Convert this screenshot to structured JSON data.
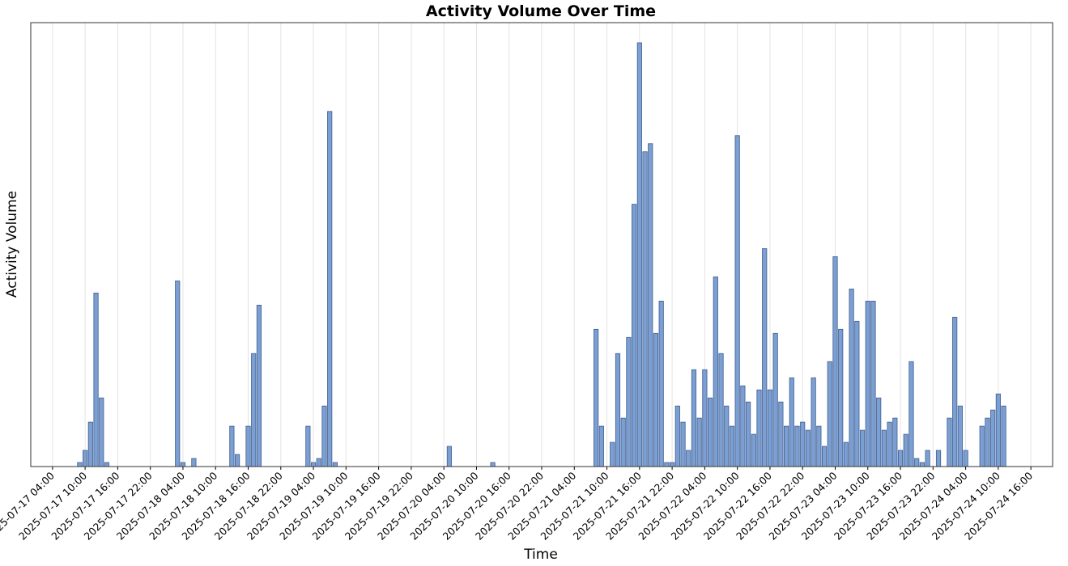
{
  "chart_data": {
    "type": "bar",
    "title": "Activity Volume Over Time",
    "xlabel": "Time",
    "ylabel": "Activity Volume",
    "x": [
      "2025-07-17 09:00",
      "2025-07-17 10:00",
      "2025-07-17 11:00",
      "2025-07-17 12:00",
      "2025-07-17 13:00",
      "2025-07-17 14:00",
      "2025-07-18 03:00",
      "2025-07-18 04:00",
      "2025-07-18 06:00",
      "2025-07-18 13:00",
      "2025-07-18 14:00",
      "2025-07-18 16:00",
      "2025-07-18 17:00",
      "2025-07-18 18:00",
      "2025-07-19 03:00",
      "2025-07-19 04:00",
      "2025-07-19 05:00",
      "2025-07-19 06:00",
      "2025-07-19 07:00",
      "2025-07-19 08:00",
      "2025-07-20 05:00",
      "2025-07-20 13:00",
      "2025-07-21 08:00",
      "2025-07-21 09:00",
      "2025-07-21 11:00",
      "2025-07-21 12:00",
      "2025-07-21 13:00",
      "2025-07-21 14:00",
      "2025-07-21 15:00",
      "2025-07-21 16:00",
      "2025-07-21 17:00",
      "2025-07-21 18:00",
      "2025-07-21 19:00",
      "2025-07-21 20:00",
      "2025-07-21 21:00",
      "2025-07-21 22:00",
      "2025-07-21 23:00",
      "2025-07-22 00:00",
      "2025-07-22 01:00",
      "2025-07-22 02:00",
      "2025-07-22 03:00",
      "2025-07-22 04:00",
      "2025-07-22 05:00",
      "2025-07-22 06:00",
      "2025-07-22 07:00",
      "2025-07-22 08:00",
      "2025-07-22 09:00",
      "2025-07-22 10:00",
      "2025-07-22 11:00",
      "2025-07-22 12:00",
      "2025-07-22 13:00",
      "2025-07-22 14:00",
      "2025-07-22 15:00",
      "2025-07-22 16:00",
      "2025-07-22 17:00",
      "2025-07-22 18:00",
      "2025-07-22 19:00",
      "2025-07-22 20:00",
      "2025-07-22 21:00",
      "2025-07-22 22:00",
      "2025-07-22 23:00",
      "2025-07-23 00:00",
      "2025-07-23 01:00",
      "2025-07-23 02:00",
      "2025-07-23 03:00",
      "2025-07-23 04:00",
      "2025-07-23 05:00",
      "2025-07-23 06:00",
      "2025-07-23 07:00",
      "2025-07-23 08:00",
      "2025-07-23 09:00",
      "2025-07-23 10:00",
      "2025-07-23 11:00",
      "2025-07-23 12:00",
      "2025-07-23 13:00",
      "2025-07-23 14:00",
      "2025-07-23 15:00",
      "2025-07-23 16:00",
      "2025-07-23 17:00",
      "2025-07-23 18:00",
      "2025-07-23 19:00",
      "2025-07-23 20:00",
      "2025-07-23 21:00",
      "2025-07-23 23:00",
      "2025-07-24 01:00",
      "2025-07-24 02:00",
      "2025-07-24 03:00",
      "2025-07-24 04:00",
      "2025-07-24 07:00",
      "2025-07-24 08:00",
      "2025-07-24 09:00",
      "2025-07-24 10:00",
      "2025-07-24 11:00"
    ],
    "values": [
      1,
      4,
      11,
      43,
      17,
      1,
      46,
      1,
      2,
      10,
      3,
      10,
      28,
      40,
      10,
      1,
      2,
      15,
      88,
      1,
      5,
      1,
      34,
      10,
      6,
      28,
      12,
      32,
      65,
      105,
      78,
      80,
      33,
      41,
      1,
      1,
      15,
      11,
      4,
      24,
      12,
      24,
      17,
      47,
      28,
      15,
      10,
      82,
      20,
      16,
      8,
      19,
      54,
      19,
      33,
      16,
      10,
      22,
      10,
      11,
      9,
      22,
      10,
      5,
      26,
      52,
      34,
      6,
      44,
      36,
      9,
      41,
      41,
      17,
      9,
      11,
      12,
      4,
      8,
      26,
      2,
      1,
      4,
      4,
      12,
      37,
      15,
      4,
      10,
      12,
      14,
      18,
      15
    ],
    "color": "#7b9fd2",
    "edgecolor": "#3f5d8f",
    "xlim": [
      "2025-07-17 00:00",
      "2025-07-24 20:00"
    ],
    "xticks": [
      "2025-07-17 04:00",
      "2025-07-17 10:00",
      "2025-07-17 16:00",
      "2025-07-17 22:00",
      "2025-07-18 04:00",
      "2025-07-18 10:00",
      "2025-07-18 16:00",
      "2025-07-18 22:00",
      "2025-07-19 04:00",
      "2025-07-19 10:00",
      "2025-07-19 16:00",
      "2025-07-19 22:00",
      "2025-07-20 04:00",
      "2025-07-20 10:00",
      "2025-07-20 16:00",
      "2025-07-20 22:00",
      "2025-07-21 04:00",
      "2025-07-21 10:00",
      "2025-07-21 16:00",
      "2025-07-21 22:00",
      "2025-07-22 04:00",
      "2025-07-22 10:00",
      "2025-07-22 16:00",
      "2025-07-22 22:00",
      "2025-07-23 04:00",
      "2025-07-23 10:00",
      "2025-07-23 16:00",
      "2025-07-23 22:00",
      "2025-07-24 04:00",
      "2025-07-24 10:00",
      "2025-07-24 16:00"
    ],
    "ylim": [
      0,
      110
    ],
    "grid": true
  }
}
